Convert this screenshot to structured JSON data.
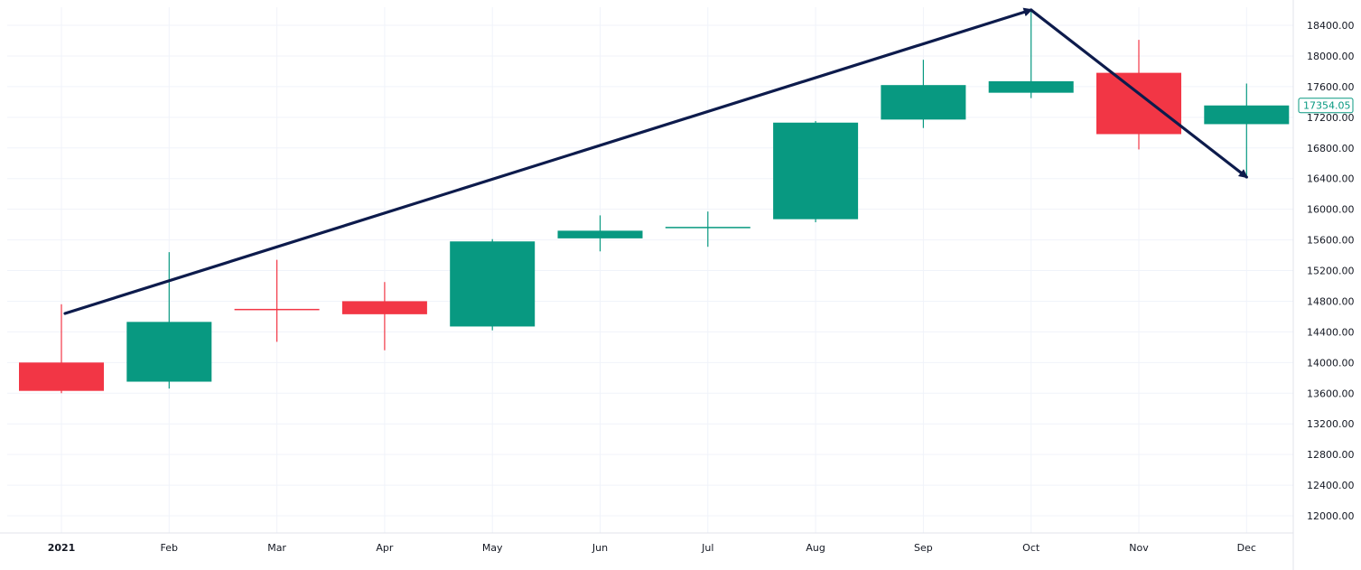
{
  "chart_data": {
    "type": "candlestick",
    "categories": [
      "2021",
      "Feb",
      "Mar",
      "Apr",
      "May",
      "Jun",
      "Jul",
      "Aug",
      "Sep",
      "Oct",
      "Nov",
      "Dec"
    ],
    "candles": [
      {
        "label": "2021",
        "open": 14000,
        "high": 14760,
        "low": 13600,
        "close": 13630
      },
      {
        "label": "Feb",
        "open": 13750,
        "high": 15440,
        "low": 13660,
        "close": 14530
      },
      {
        "label": "Mar",
        "open": 14700,
        "high": 15340,
        "low": 14270,
        "close": 14690
      },
      {
        "label": "Apr",
        "open": 14800,
        "high": 15050,
        "low": 14160,
        "close": 14630
      },
      {
        "label": "May",
        "open": 14470,
        "high": 15610,
        "low": 14420,
        "close": 15580
      },
      {
        "label": "Jun",
        "open": 15620,
        "high": 15920,
        "low": 15450,
        "close": 15720
      },
      {
        "label": "Jul",
        "open": 15760,
        "high": 15970,
        "low": 15510,
        "close": 15770
      },
      {
        "label": "Aug",
        "open": 15870,
        "high": 17150,
        "low": 15830,
        "close": 17130
      },
      {
        "label": "Sep",
        "open": 17170,
        "high": 17950,
        "low": 17060,
        "close": 17620
      },
      {
        "label": "Oct",
        "open": 17520,
        "high": 18600,
        "low": 17450,
        "close": 17670
      },
      {
        "label": "Nov",
        "open": 17780,
        "high": 18210,
        "low": 16780,
        "close": 16980
      },
      {
        "label": "Dec",
        "open": 17110,
        "high": 17640,
        "low": 16420,
        "close": 17354.05
      }
    ],
    "y_ticks": [
      "12000.00",
      "12400.00",
      "12800.00",
      "13200.00",
      "13600.00",
      "14000.00",
      "14400.00",
      "14800.00",
      "15200.00",
      "15600.00",
      "16000.00",
      "16400.00",
      "16800.00",
      "17200.00",
      "17600.00",
      "18000.00",
      "18400.00"
    ],
    "ylim": [
      11900,
      18700
    ],
    "current_price": "17354.05",
    "trend_lines": [
      {
        "from": {
          "x": "2021",
          "y": 14640
        },
        "to": {
          "x": "Oct",
          "y": 18600
        }
      },
      {
        "from": {
          "x": "Oct",
          "y": 18600
        },
        "to": {
          "x": "Dec",
          "y": 16420
        }
      }
    ],
    "grid": true,
    "colors": {
      "up": "#089981",
      "down": "#f23645",
      "grid": "#f0f3fa",
      "trend": "#0d1b4c",
      "axis_text": "#131722"
    }
  }
}
